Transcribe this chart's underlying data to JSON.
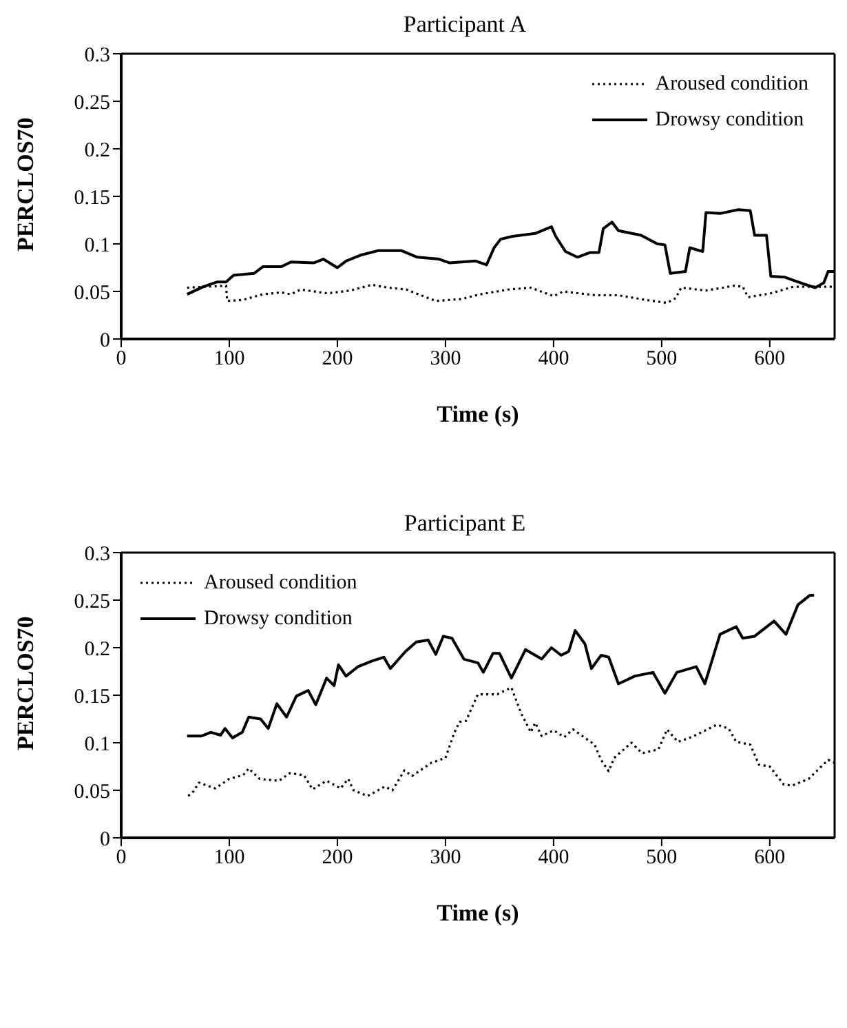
{
  "chart_data": [
    {
      "type": "line",
      "title": "Participant A",
      "xlabel": "Time (s)",
      "ylabel": "PERCLOS70",
      "xlim": [
        0,
        660
      ],
      "xticks": [
        0,
        100,
        200,
        300,
        400,
        500,
        600
      ],
      "ylim": [
        0,
        0.3
      ],
      "yticks": [
        0,
        0.05,
        0.1,
        0.15,
        0.2,
        0.25,
        0.3
      ],
      "grid": false,
      "legend": "top right",
      "marker": "none",
      "series": [
        {
          "name": "Aroused condition",
          "color": "#000000",
          "line_style": "dotted",
          "x": [
            61,
            97,
            98,
            112,
            131,
            148,
            157,
            166,
            191,
            212,
            232,
            247,
            264,
            291,
            315,
            332,
            358,
            379,
            400,
            409,
            439,
            460,
            486,
            505,
            513,
            518,
            541,
            567,
            575,
            580,
            601,
            622,
            660
          ],
          "values": [
            0.054,
            0.056,
            0.04,
            0.041,
            0.047,
            0.049,
            0.047,
            0.052,
            0.048,
            0.051,
            0.057,
            0.054,
            0.052,
            0.04,
            0.042,
            0.047,
            0.052,
            0.054,
            0.045,
            0.05,
            0.046,
            0.046,
            0.041,
            0.038,
            0.043,
            0.054,
            0.051,
            0.056,
            0.055,
            0.044,
            0.048,
            0.055,
            0.055
          ]
        },
        {
          "name": "Drowsy condition",
          "color": "#000000",
          "line_style": "solid",
          "x": [
            61,
            76,
            89,
            97,
            104,
            123,
            131,
            148,
            157,
            178,
            187,
            200,
            208,
            221,
            238,
            259,
            274,
            294,
            304,
            328,
            338,
            345,
            351,
            362,
            383,
            398,
            402,
            411,
            422,
            434,
            442,
            446,
            454,
            460,
            481,
            496,
            503,
            508,
            522,
            526,
            538,
            541,
            554,
            571,
            582,
            586,
            597,
            601,
            614,
            631,
            642,
            650,
            654,
            660
          ],
          "values": [
            0.047,
            0.055,
            0.06,
            0.06,
            0.067,
            0.069,
            0.076,
            0.076,
            0.081,
            0.08,
            0.084,
            0.075,
            0.082,
            0.088,
            0.093,
            0.093,
            0.086,
            0.084,
            0.08,
            0.082,
            0.078,
            0.096,
            0.105,
            0.108,
            0.111,
            0.118,
            0.108,
            0.092,
            0.086,
            0.091,
            0.091,
            0.116,
            0.123,
            0.114,
            0.109,
            0.1,
            0.099,
            0.069,
            0.071,
            0.096,
            0.092,
            0.133,
            0.132,
            0.136,
            0.135,
            0.109,
            0.109,
            0.066,
            0.065,
            0.058,
            0.054,
            0.059,
            0.071,
            0.071
          ]
        }
      ]
    },
    {
      "type": "line",
      "title": "Participant E",
      "xlabel": "Time (s)",
      "ylabel": "PERCLOS70",
      "xlim": [
        0,
        660
      ],
      "xticks": [
        0,
        100,
        200,
        300,
        400,
        500,
        600
      ],
      "ylim": [
        0,
        0.3
      ],
      "yticks": [
        0,
        0.05,
        0.1,
        0.15,
        0.2,
        0.25,
        0.3
      ],
      "grid": false,
      "legend": "top left",
      "marker": "none",
      "series": [
        {
          "name": "Aroused condition",
          "color": "#000000",
          "line_style": "dotted",
          "x": [
            62,
            67,
            72,
            87,
            100,
            113,
            118,
            128,
            146,
            156,
            169,
            177,
            190,
            203,
            210,
            215,
            228,
            244,
            251,
            262,
            269,
            287,
            300,
            308,
            313,
            319,
            330,
            348,
            361,
            370,
            379,
            383,
            389,
            400,
            410,
            418,
            438,
            444,
            451,
            456,
            472,
            482,
            497,
            505,
            515,
            528,
            551,
            562,
            569,
            582,
            590,
            600,
            613,
            621,
            636,
            654,
            660
          ],
          "values": [
            0.044,
            0.049,
            0.058,
            0.052,
            0.062,
            0.066,
            0.073,
            0.062,
            0.06,
            0.068,
            0.066,
            0.051,
            0.06,
            0.052,
            0.062,
            0.05,
            0.044,
            0.054,
            0.05,
            0.071,
            0.065,
            0.079,
            0.084,
            0.11,
            0.122,
            0.123,
            0.151,
            0.151,
            0.158,
            0.131,
            0.111,
            0.121,
            0.107,
            0.113,
            0.106,
            0.114,
            0.098,
            0.082,
            0.07,
            0.084,
            0.1,
            0.089,
            0.093,
            0.114,
            0.101,
            0.106,
            0.119,
            0.115,
            0.101,
            0.098,
            0.077,
            0.075,
            0.056,
            0.055,
            0.062,
            0.082,
            0.079
          ]
        },
        {
          "name": "Drowsy condition",
          "color": "#000000",
          "line_style": "solid",
          "x": [
            61,
            74,
            83,
            92,
            96,
            103,
            112,
            118,
            129,
            136,
            144,
            153,
            162,
            173,
            180,
            190,
            197,
            201,
            208,
            219,
            232,
            243,
            249,
            263,
            273,
            284,
            291,
            298,
            306,
            317,
            330,
            335,
            344,
            350,
            361,
            374,
            389,
            398,
            407,
            414,
            420,
            429,
            435,
            444,
            451,
            460,
            475,
            492,
            503,
            514,
            532,
            540,
            554,
            569,
            575,
            586,
            604,
            615,
            626,
            637,
            641
          ],
          "values": [
            0.107,
            0.107,
            0.111,
            0.108,
            0.115,
            0.105,
            0.111,
            0.127,
            0.125,
            0.115,
            0.141,
            0.127,
            0.149,
            0.155,
            0.14,
            0.168,
            0.16,
            0.182,
            0.17,
            0.18,
            0.186,
            0.19,
            0.178,
            0.196,
            0.206,
            0.208,
            0.193,
            0.212,
            0.21,
            0.188,
            0.184,
            0.174,
            0.194,
            0.194,
            0.168,
            0.198,
            0.188,
            0.2,
            0.192,
            0.196,
            0.218,
            0.204,
            0.178,
            0.192,
            0.19,
            0.162,
            0.17,
            0.174,
            0.152,
            0.174,
            0.18,
            0.162,
            0.214,
            0.222,
            0.21,
            0.212,
            0.228,
            0.214,
            0.245,
            0.255,
            0.255
          ]
        }
      ]
    }
  ]
}
